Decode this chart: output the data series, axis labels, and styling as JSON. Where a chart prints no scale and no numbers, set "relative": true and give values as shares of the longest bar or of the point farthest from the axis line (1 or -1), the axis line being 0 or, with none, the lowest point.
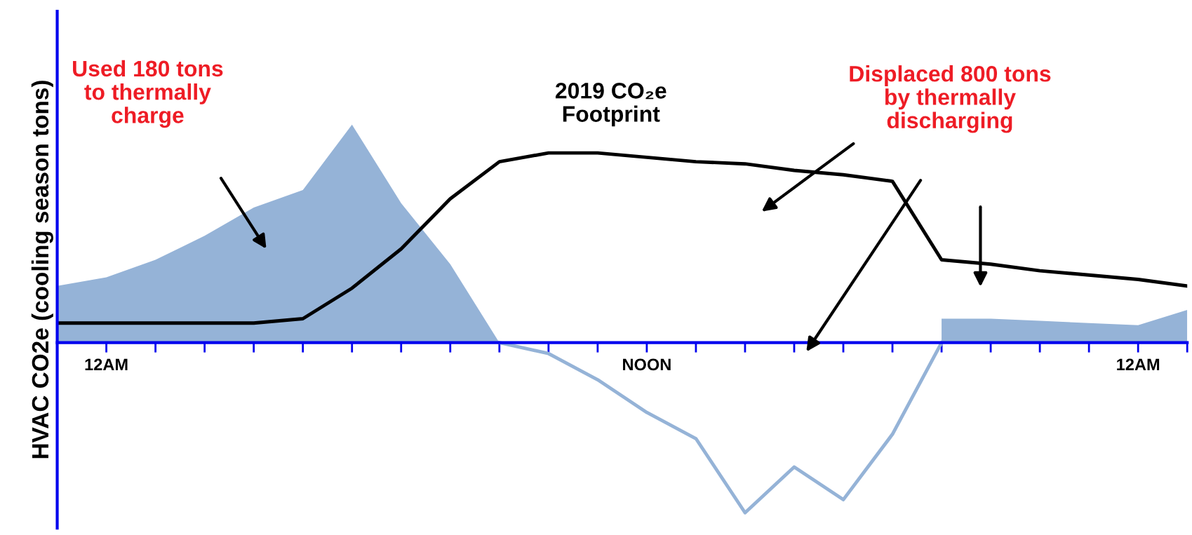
{
  "chart_data": {
    "type": "area",
    "relative": true,
    "ylabel": "HVAC CO2e (cooling season tons)",
    "categories": [
      null,
      "12AM",
      null,
      null,
      null,
      null,
      null,
      null,
      null,
      null,
      null,
      null,
      "NOON",
      null,
      null,
      null,
      null,
      null,
      null,
      null,
      null,
      null,
      "12AM",
      null
    ],
    "series": [
      {
        "color": "#95b3d7",
        "values": [
          0.26,
          0.3,
          0.38,
          0.49,
          0.62,
          0.7,
          1.0,
          0.64,
          0.36,
          0.0,
          null,
          null,
          null,
          null,
          null,
          null,
          null,
          null,
          0.11,
          0.11,
          0.1,
          0.09,
          0.08,
          0.15
        ]
      },
      {
        "type": "line",
        "color": "#95b3d7",
        "values": [
          null,
          null,
          null,
          null,
          null,
          null,
          null,
          null,
          null,
          0.0,
          -0.05,
          -0.17,
          -0.32,
          -0.44,
          -0.78,
          -0.57,
          -0.72,
          -0.42,
          0.0,
          null,
          null,
          null,
          null,
          null
        ]
      },
      {
        "type": "line",
        "color": "#000000",
        "values": [
          0.09,
          0.09,
          0.09,
          0.09,
          0.09,
          0.11,
          0.25,
          0.43,
          0.66,
          0.83,
          0.87,
          0.87,
          0.85,
          0.83,
          0.82,
          0.79,
          0.77,
          0.74,
          0.38,
          0.36,
          0.33,
          0.31,
          0.29,
          0.26
        ]
      }
    ],
    "annotations": [
      "Used 180 tons\nto thermally\ncharge",
      "2019 CO₂e\nFootprint",
      "Displaced 800 tons\nby thermally\ndischarging"
    ],
    "grid": false,
    "legend": false
  }
}
